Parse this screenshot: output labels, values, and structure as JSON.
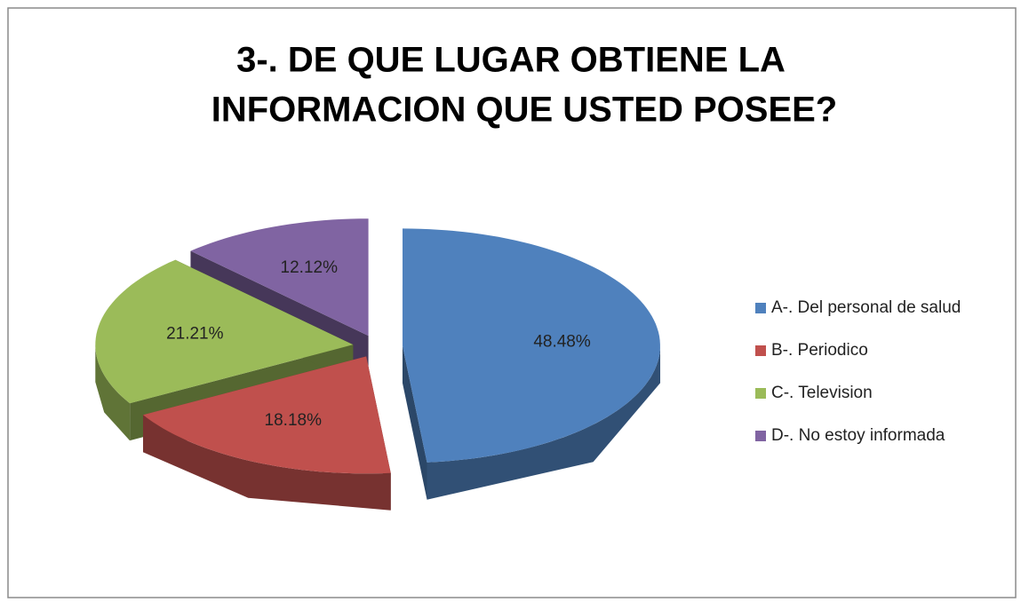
{
  "chart_data": {
    "type": "pie",
    "title": [
      "3-. DE QUE LUGAR OBTIENE LA",
      "INFORMACION QUE USTED POSEE?"
    ],
    "categories": [
      "A-. Del personal de salud",
      "B-. Periodico",
      "C-. Television",
      "D-. No estoy informada"
    ],
    "values": [
      48.48,
      18.18,
      21.21,
      12.12
    ],
    "value_labels": [
      "48.48%",
      "18.18%",
      "21.21%",
      "12.12%"
    ],
    "colors": [
      "#4f81bd",
      "#c0504d",
      "#9bbb59",
      "#8064a2"
    ],
    "legend": "right"
  }
}
